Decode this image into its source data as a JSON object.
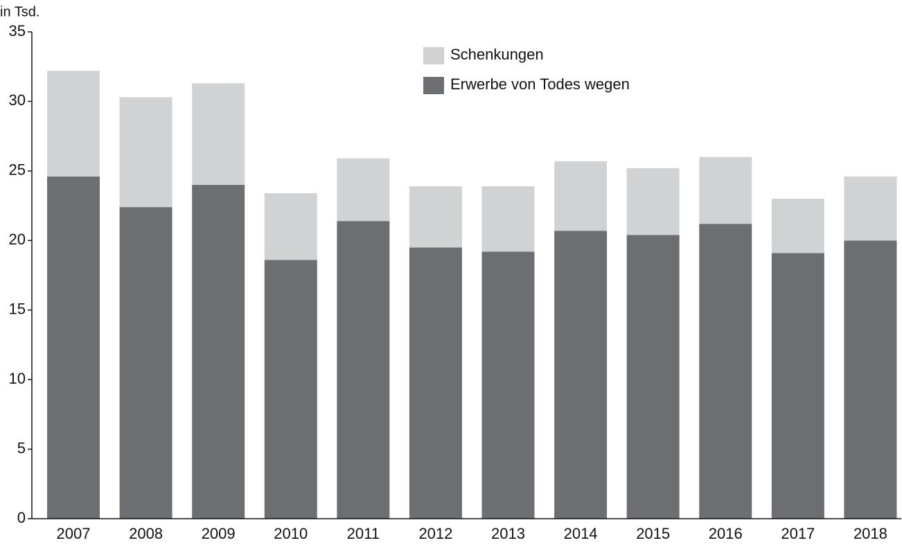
{
  "chart_data": {
    "type": "stacked_bar",
    "y_unit_label": "in Tsd.",
    "categories": [
      "2007",
      "2008",
      "2009",
      "2010",
      "2011",
      "2012",
      "2013",
      "2014",
      "2015",
      "2016",
      "2017",
      "2018"
    ],
    "series": [
      {
        "name": "Erwerbe von Todes wegen",
        "color": "#6d6e71",
        "values": [
          24.6,
          22.4,
          24.0,
          18.6,
          21.4,
          19.5,
          19.2,
          20.7,
          20.4,
          21.2,
          19.1,
          20.0
        ]
      },
      {
        "name": "Schenkungen",
        "color": "#d1d2d4",
        "values": [
          7.6,
          7.9,
          7.3,
          4.8,
          4.5,
          4.4,
          4.7,
          5.0,
          4.8,
          4.8,
          3.9,
          4.6
        ]
      }
    ],
    "ylim": [
      0,
      35
    ],
    "yticks": [
      0,
      5,
      10,
      15,
      20,
      25,
      30,
      35
    ],
    "grid": false
  }
}
